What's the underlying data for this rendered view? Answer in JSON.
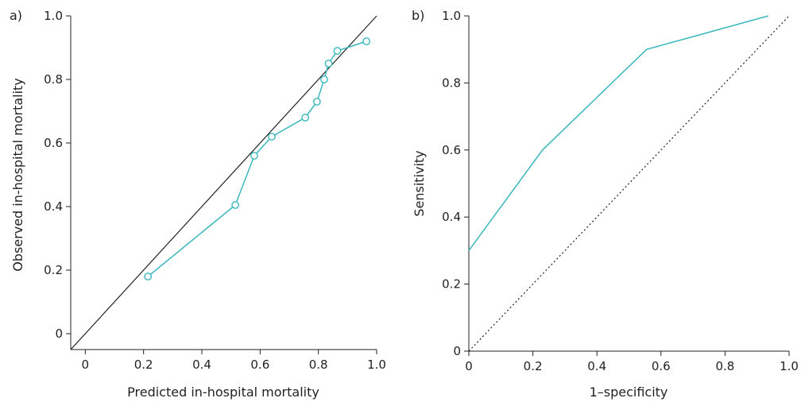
{
  "chart_data": [
    {
      "panel_label": "a)",
      "type": "scatter",
      "xlabel": "Predicted in-hospital mortality",
      "ylabel": "Observed in-hospital mortality",
      "xlim": [
        -0.05,
        1.0
      ],
      "ylim": [
        -0.05,
        1.0
      ],
      "xticks": [
        0,
        0.2,
        0.4,
        0.6,
        0.8,
        1.0
      ],
      "xtick_labels": [
        "0",
        "0.2",
        "0.4",
        "0.6",
        "0.8",
        "1.0"
      ],
      "yticks": [
        0,
        0.2,
        0.4,
        0.6,
        0.8,
        1.0
      ],
      "ytick_labels": [
        "0",
        "0.2",
        "0.4",
        "0.6",
        "0.8",
        "1.0"
      ],
      "grid": false,
      "reference_line": {
        "x": [
          -0.05,
          1.0
        ],
        "y": [
          -0.05,
          1.0
        ],
        "style": "solid",
        "color": "#231f20"
      },
      "series": [
        {
          "x": [
            0.215,
            0.515,
            0.58,
            0.64,
            0.755,
            0.795,
            0.82,
            0.835,
            0.865,
            0.965
          ],
          "y": [
            0.18,
            0.405,
            0.56,
            0.62,
            0.68,
            0.73,
            0.8,
            0.85,
            0.89,
            0.92
          ],
          "color": "#3ab7bd",
          "marker": "open-circle"
        }
      ]
    },
    {
      "panel_label": "b)",
      "type": "line",
      "xlabel": "1–specificity",
      "ylabel": "Sensitivity",
      "xlim": [
        0,
        1.0
      ],
      "ylim": [
        0,
        1.0
      ],
      "xticks": [
        0,
        0.2,
        0.4,
        0.6,
        0.8,
        1.0
      ],
      "xtick_labels": [
        "0",
        "0.2",
        "0.4",
        "0.6",
        "0.8",
        "1.0"
      ],
      "yticks": [
        0,
        0.2,
        0.4,
        0.6,
        0.8,
        1.0
      ],
      "ytick_labels": [
        "0",
        "0.2",
        "0.4",
        "0.6",
        "0.8",
        "1.0"
      ],
      "grid": false,
      "reference_line": {
        "x": [
          0,
          1.0
        ],
        "y": [
          0,
          1.0
        ],
        "style": "dotted",
        "color": "#231f20"
      },
      "series": [
        {
          "x": [
            0,
            0.23,
            0.555,
            0.935
          ],
          "y": [
            0.3,
            0.6,
            0.9,
            1.0
          ],
          "color": "#3ab7bd"
        }
      ]
    }
  ]
}
